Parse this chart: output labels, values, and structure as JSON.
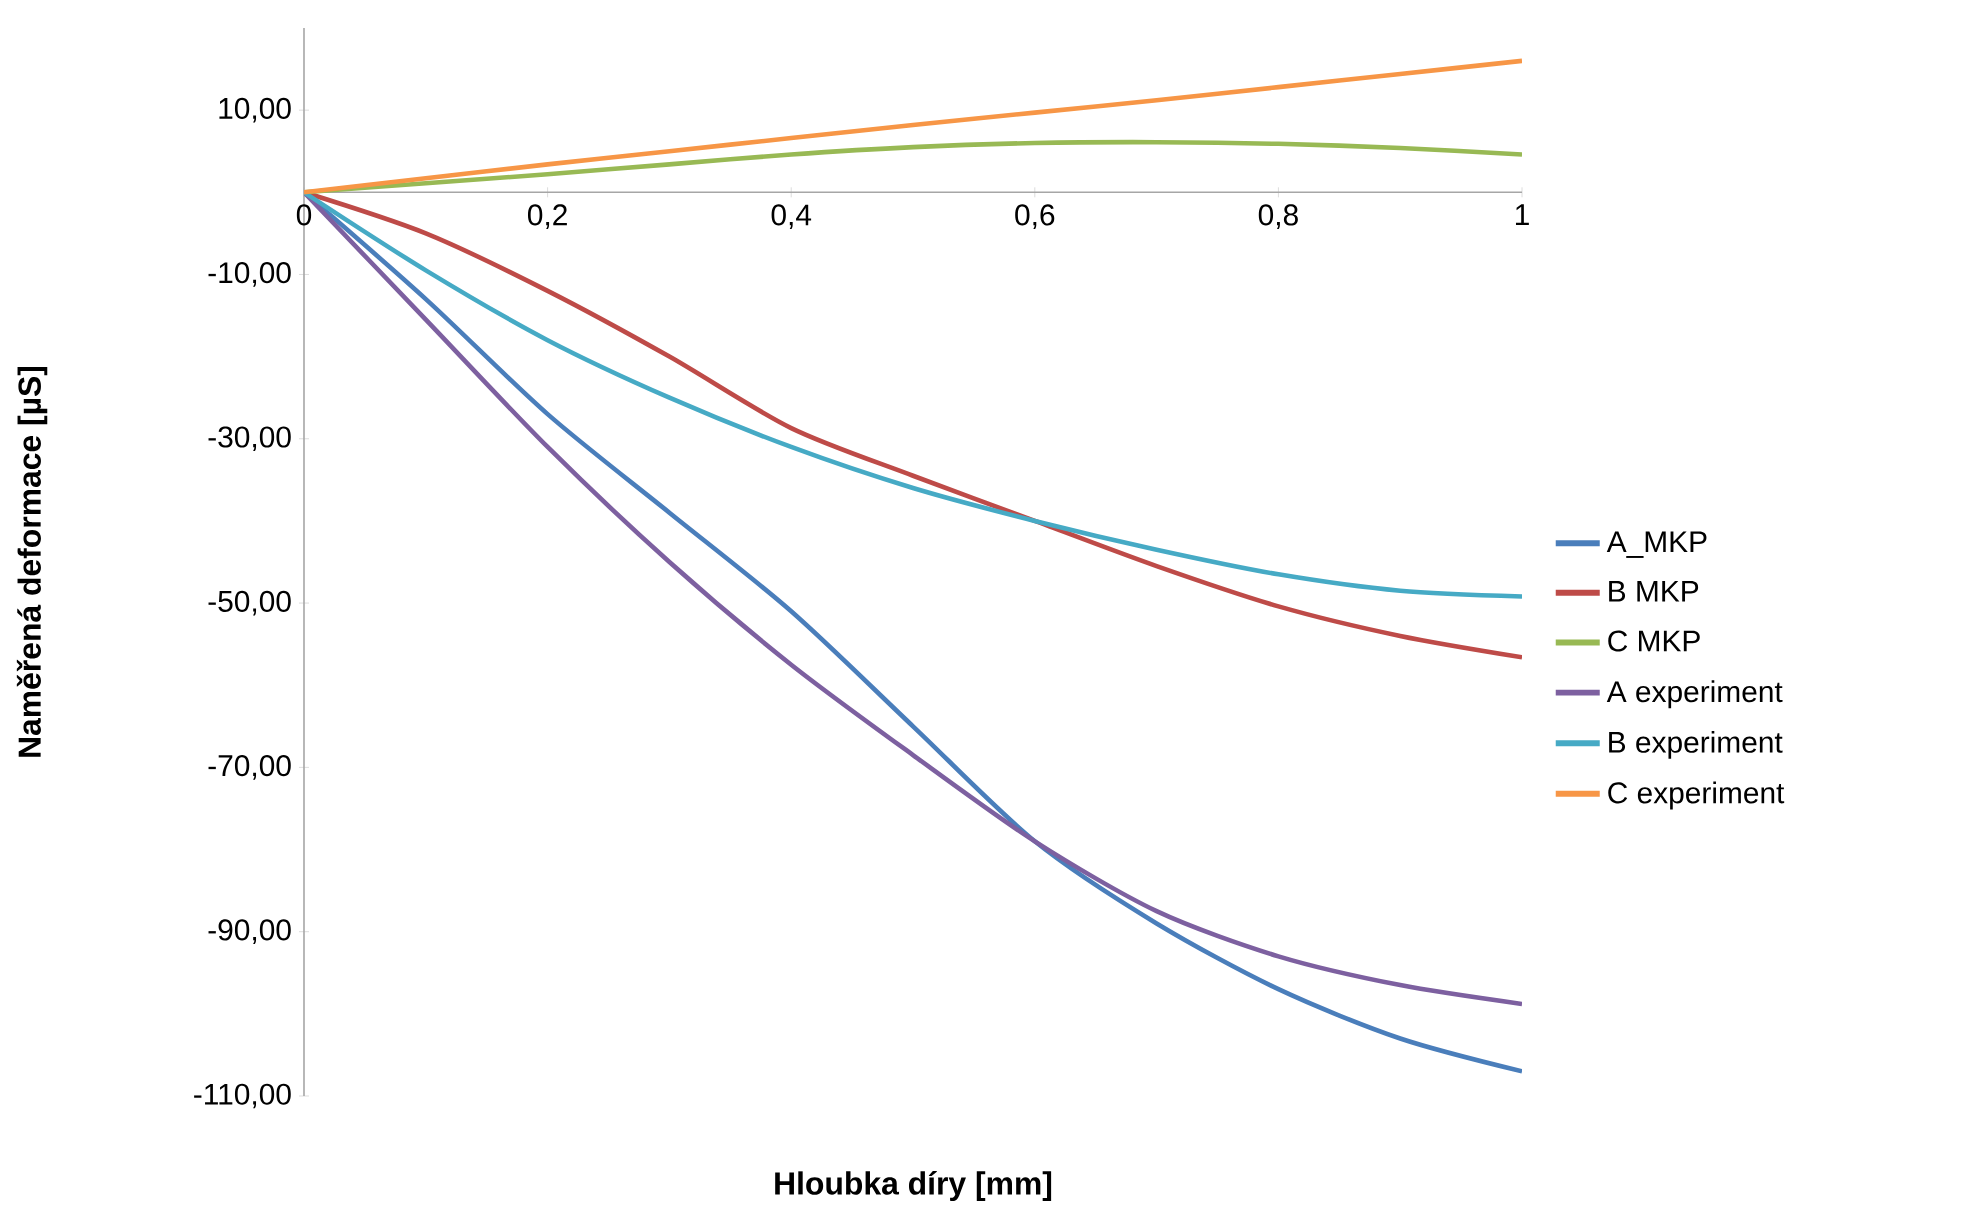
{
  "chart_data": {
    "type": "line",
    "xlabel": "Hloubka díry [mm]",
    "ylabel": "Naměřená deformace [µS]",
    "x": [
      0,
      0.1,
      0.2,
      0.3,
      0.4,
      0.5,
      0.6,
      0.7,
      0.8,
      0.9,
      1
    ],
    "xlim": [
      0,
      1
    ],
    "xticks": [
      0,
      {
        "value": 0.2,
        "label": "0,2"
      },
      {
        "value": 0.4,
        "label": "0,4"
      },
      {
        "value": 0.6,
        "label": "0,6"
      },
      {
        "value": 0.8,
        "label": "0,8"
      },
      1
    ],
    "ylim": [
      -110,
      20
    ],
    "yticks": [
      {
        "value": -110,
        "label": "-110,00"
      },
      {
        "value": -90,
        "label": "-90,00"
      },
      {
        "value": -70,
        "label": "-70,00"
      },
      {
        "value": -50,
        "label": "-50,00"
      },
      {
        "value": -30,
        "label": "-30,00"
      },
      {
        "value": -10,
        "label": "-10,00"
      },
      {
        "value": 10,
        "label": "10,00"
      }
    ],
    "grid": false,
    "legend": "right",
    "marker": "none",
    "line_style": "solid",
    "series": [
      {
        "name": "A_MKP",
        "color": "#4a7ebb",
        "values": [
          0,
          -13,
          -27,
          -39,
          -51,
          -65,
          -79,
          -89,
          -97,
          -103,
          -107
        ]
      },
      {
        "name": "B MKP",
        "color": "#be4b48",
        "values": [
          0,
          -5,
          -12,
          -20,
          -28.7,
          -34.5,
          -40,
          -45.5,
          -50.4,
          -54,
          -56.6
        ]
      },
      {
        "name": "C MKP",
        "color": "#98b954",
        "values": [
          0,
          1.1,
          2.2,
          3.4,
          4.6,
          5.5,
          6,
          6.1,
          5.9,
          5.4,
          4.6
        ]
      },
      {
        "name": "A experiment",
        "color": "#7d60a0",
        "values": [
          0,
          -15.5,
          -31,
          -45,
          -57.5,
          -68.5,
          -79,
          -87.5,
          -93,
          -96.5,
          -98.8
        ]
      },
      {
        "name": "B experiment",
        "color": "#46aac5",
        "values": [
          0,
          -9.5,
          -18,
          -25,
          -31,
          -36,
          -40,
          -43.5,
          -46.5,
          -48.5,
          -49.2
        ]
      },
      {
        "name": "C experiment",
        "color": "#f79646",
        "values": [
          0,
          1.7,
          3.4,
          5,
          6.6,
          8.2,
          9.7,
          11.2,
          12.8,
          14.4,
          16
        ]
      }
    ]
  }
}
